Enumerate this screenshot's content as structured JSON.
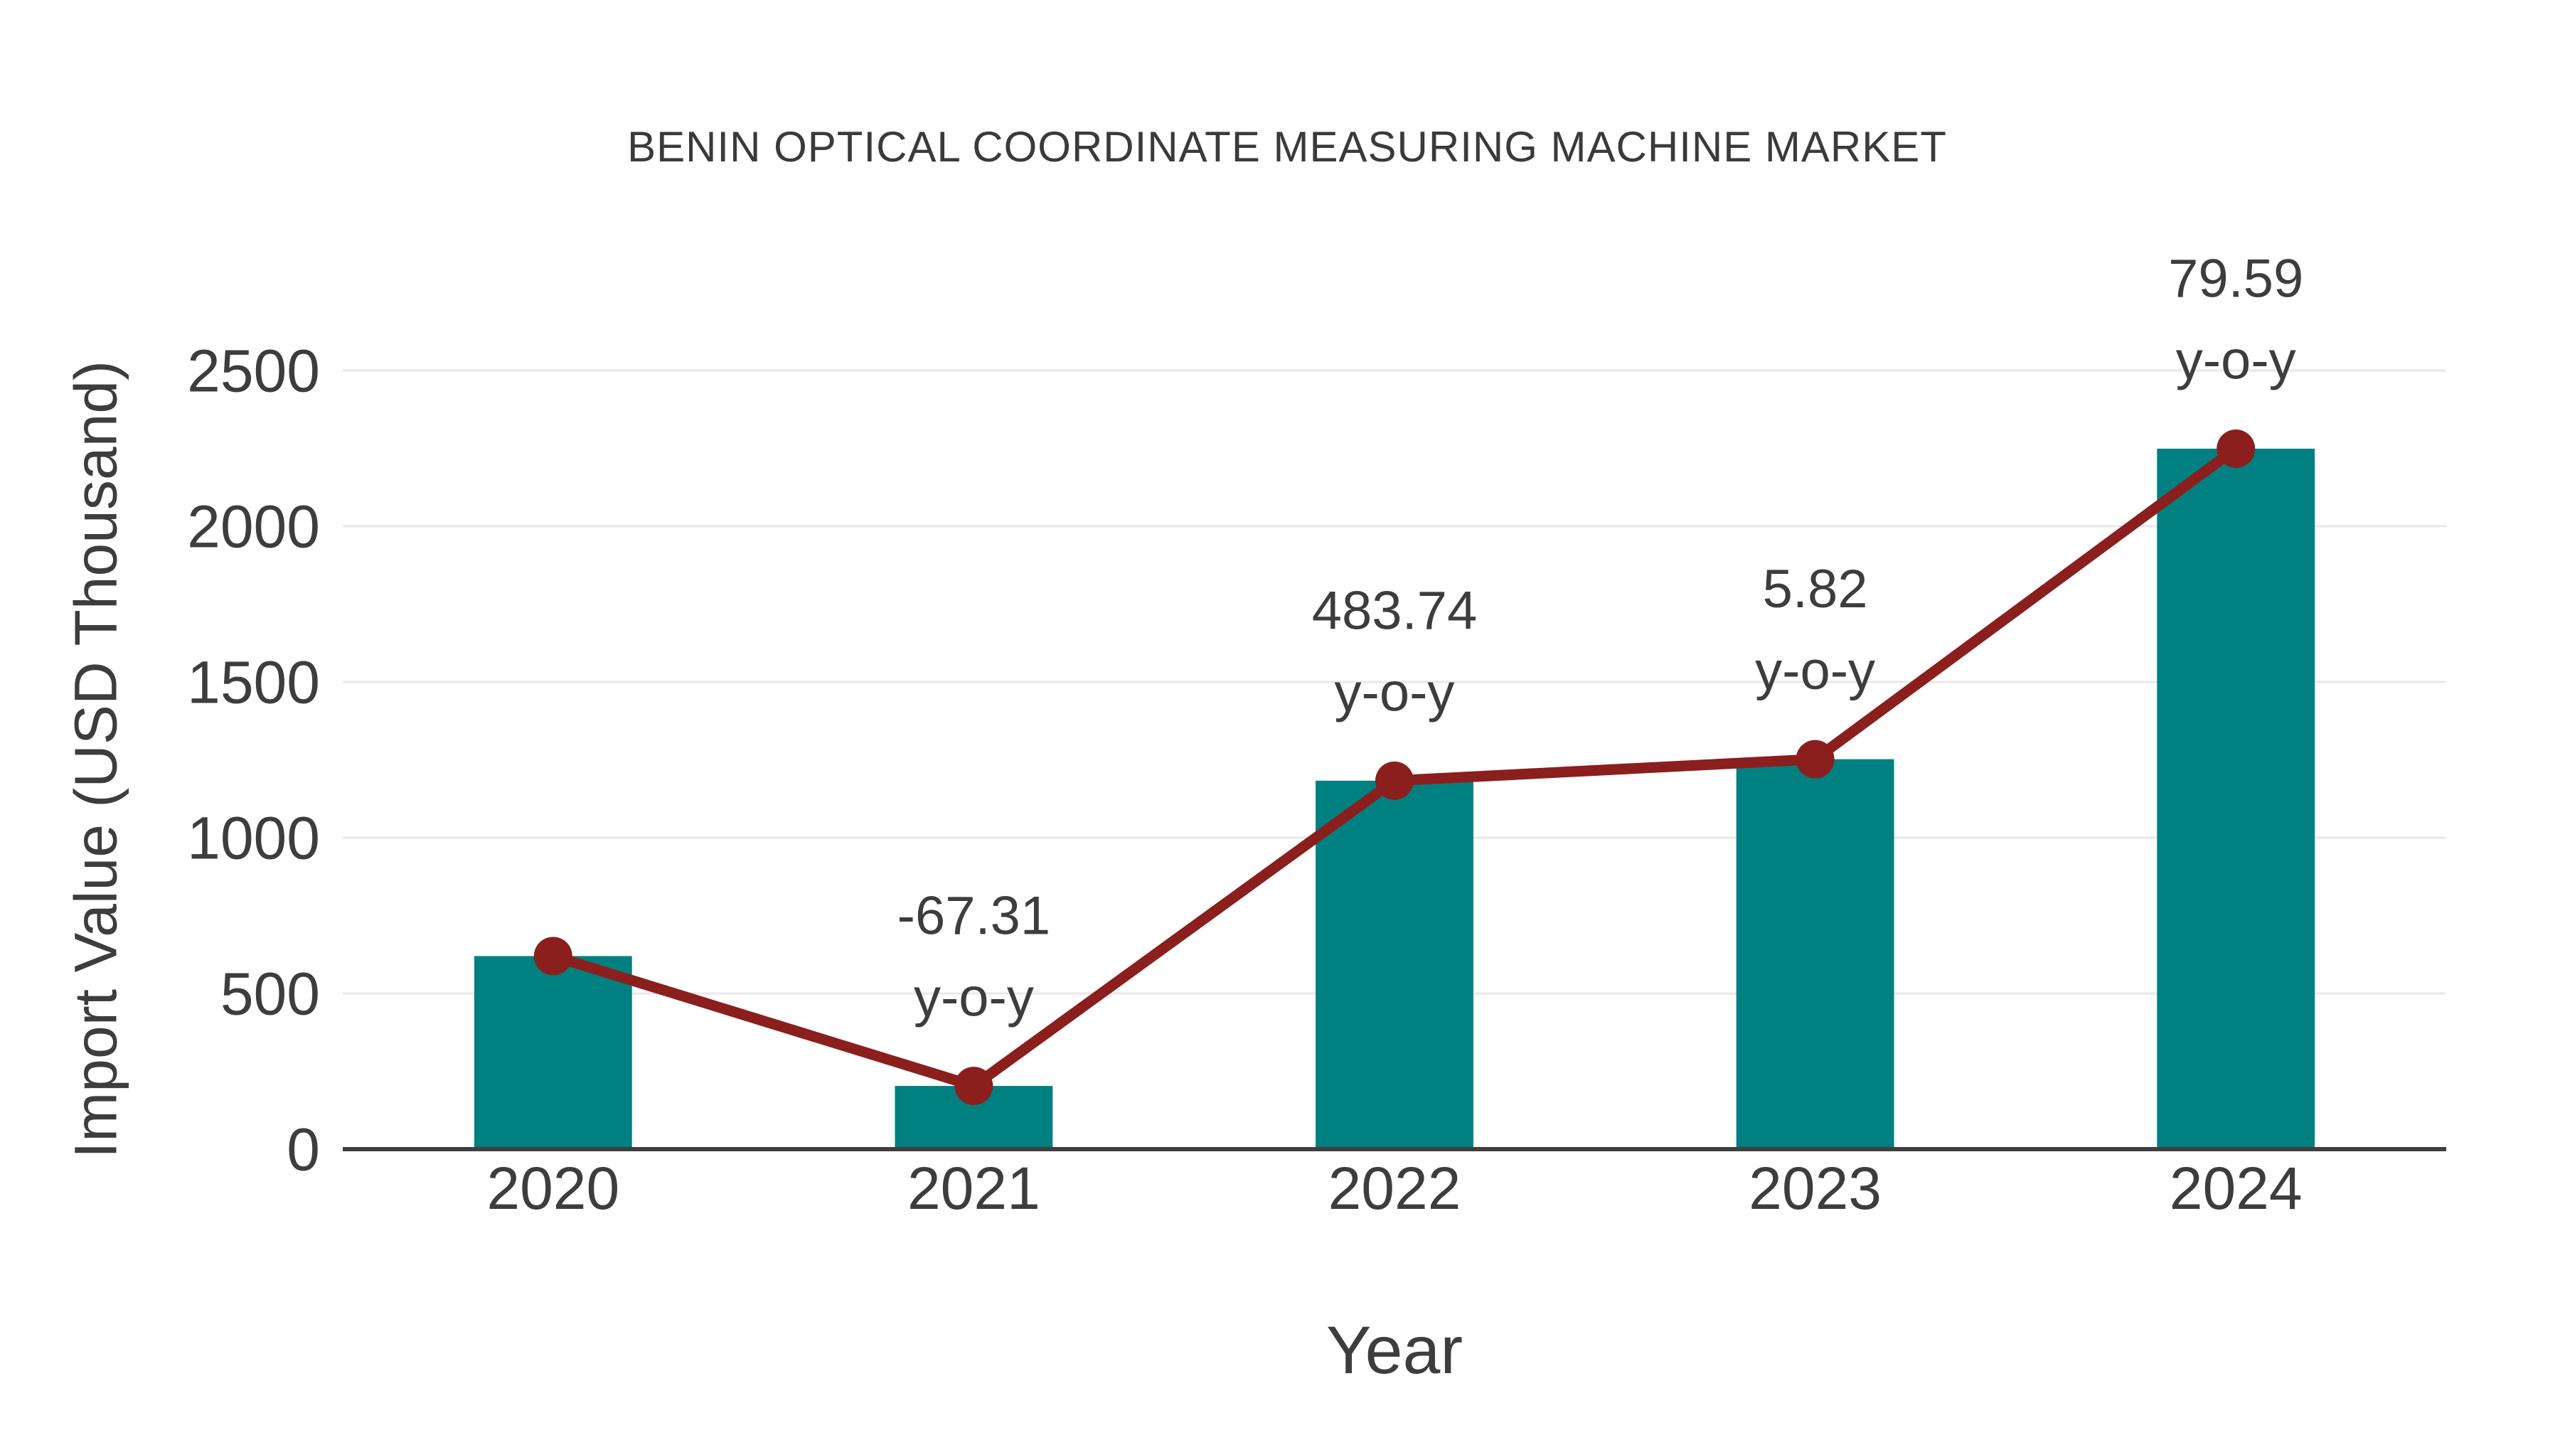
{
  "chart": {
    "title": "BENIN OPTICAL COORDINATE MEASURING MACHINE MARKET",
    "x_axis": {
      "title": "Year",
      "tick_labels": [
        "2020",
        "2021",
        "2022",
        "2023",
        "2024"
      ]
    },
    "y_axis": {
      "title": "Import Value (USD Thousand)",
      "tick_labels": [
        "0",
        "500",
        "1000",
        "1500",
        "2000",
        "2500"
      ]
    }
  },
  "chart_data": {
    "type": "bar",
    "title": "BENIN OPTICAL COORDINATE MEASURING MACHINE MARKET",
    "xlabel": "Year",
    "ylabel": "Import Value (USD Thousand)",
    "categories": [
      "2020",
      "2021",
      "2022",
      "2023",
      "2024"
    ],
    "series": [
      {
        "name": "Import Value (USD Thousand)",
        "type": "bar",
        "values": [
          620,
          203,
          1183,
          1252,
          2249
        ]
      },
      {
        "name": "y-o-y trend line",
        "type": "line",
        "values": [
          620,
          203,
          1183,
          1252,
          2249
        ]
      }
    ],
    "annotations": [
      {
        "category": "2021",
        "lines": [
          "-67.31",
          "y-o-y"
        ]
      },
      {
        "category": "2022",
        "lines": [
          "483.74",
          "y-o-y"
        ]
      },
      {
        "category": "2023",
        "lines": [
          "5.82",
          "y-o-y"
        ]
      },
      {
        "category": "2024",
        "lines": [
          "79.59",
          "y-o-y"
        ]
      }
    ],
    "ylim": [
      0,
      2500
    ],
    "yticks": [
      0,
      500,
      1000,
      1500,
      2000,
      2500
    ],
    "grid": true,
    "legend_position": "none"
  },
  "colors": {
    "bar": "#008080",
    "line": "#8B1F1E",
    "marker": "#8B1F1E",
    "text": "#3D3D3D",
    "grid": "#E8E8E8",
    "axis": "#3F3F3F",
    "background": "#FFFFFF"
  }
}
